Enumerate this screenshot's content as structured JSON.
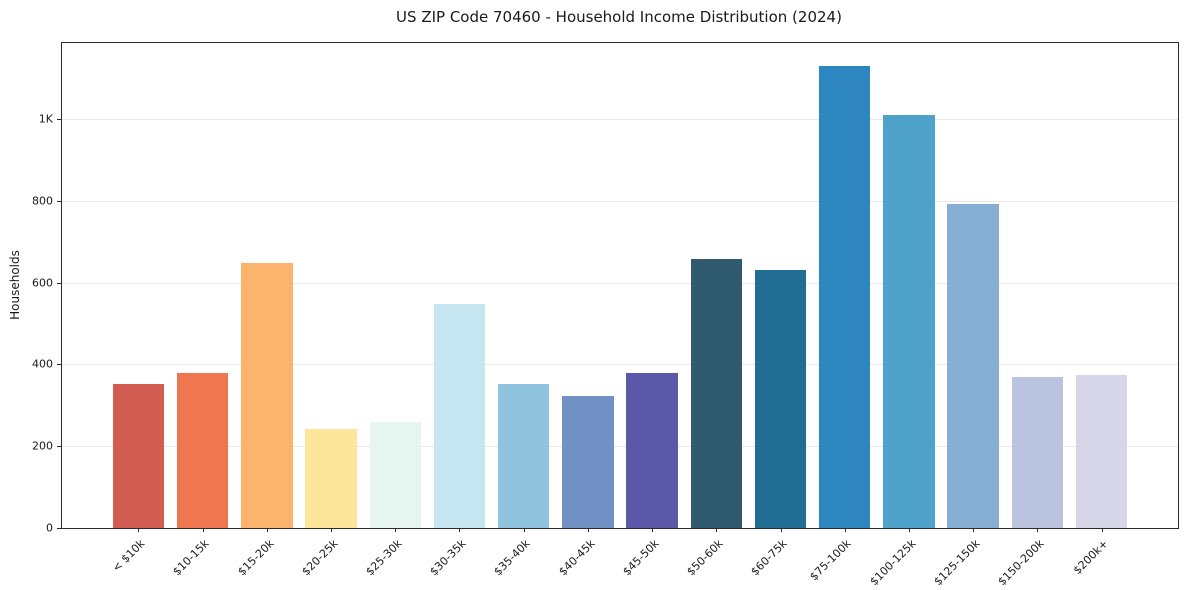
{
  "chart_data": {
    "type": "bar",
    "title": "US ZIP Code 70460 - Household Income Distribution (2024)",
    "xlabel": "",
    "ylabel": "Households",
    "ylim": [
      0,
      1186
    ],
    "grid": true,
    "legend": "none",
    "categories": [
      "< $10k",
      "$10-15k",
      "$15-20k",
      "$20-25k",
      "$25-30k",
      "$30-35k",
      "$35-40k",
      "$40-45k",
      "$45-50k",
      "$50-60k",
      "$60-75k",
      "$75-100k",
      "$100-125k",
      "$125-150k",
      "$150-200k",
      "$200k+"
    ],
    "values": [
      352,
      378,
      648,
      242,
      260,
      549,
      353,
      323,
      378,
      657,
      632,
      1130,
      1010,
      792,
      370,
      375
    ],
    "bar_colors": [
      "#d25c52",
      "#f0764f",
      "#fcb46c",
      "#fde69b",
      "#e6f5f0",
      "#c6e6f2",
      "#90c3de",
      "#7292c6",
      "#5b57a9",
      "#2f5a6f",
      "#226d94",
      "#2e86c1",
      "#4fa2ca",
      "#87afd3",
      "#bac4de",
      "#d7d6e8"
    ],
    "yticks": [
      {
        "value": 0,
        "label": "0"
      },
      {
        "value": 200,
        "label": "200"
      },
      {
        "value": 400,
        "label": "400"
      },
      {
        "value": 600,
        "label": "600"
      },
      {
        "value": 800,
        "label": "800"
      },
      {
        "value": 1000,
        "label": "1K"
      }
    ]
  },
  "colors": {
    "background": "#ffffff",
    "axis": "#2b2b2b",
    "grid": "#e9e9e9",
    "text": "#1a1a1a"
  }
}
